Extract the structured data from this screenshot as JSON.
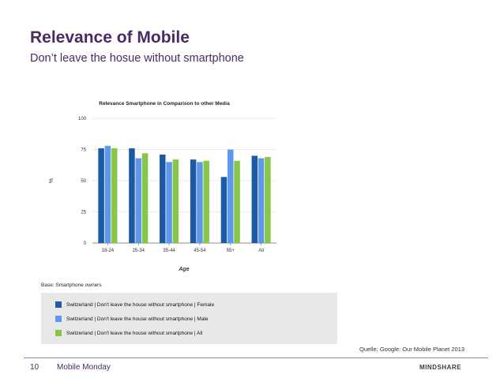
{
  "slide": {
    "title": "Relevance of Mobile",
    "subtitle": "Don’t leave the hosue without smartphone",
    "base_note": "Base: Smartphone owners",
    "source": "Quelle: Google: Our Mobile Planet 2013",
    "page_number": "10",
    "footer_title": "Mobile Monday",
    "brand": "MINDSHARE"
  },
  "chart_data": {
    "type": "bar",
    "title": "Relevance Smartphone in Comparison to other Media",
    "xlabel": "Age",
    "ylabel": "%",
    "ylim": [
      0,
      100
    ],
    "yticks": [
      0,
      25,
      50,
      75,
      100
    ],
    "grid": true,
    "legend_placement": "bottom",
    "categories": [
      "18-24",
      "25-34",
      "35-44",
      "45-54",
      "55+",
      "All"
    ],
    "series": [
      {
        "name": "Switzerland | Don't leave the house without smartphone | Female",
        "color": "#1c5aa6",
        "values": [
          76,
          76,
          71,
          67,
          53,
          70
        ]
      },
      {
        "name": "Switzerland | Don't leave the house without smartphone | Male",
        "color": "#5f97ea",
        "values": [
          78,
          68,
          65,
          65,
          75,
          68
        ]
      },
      {
        "name": "Switzerland | Don't leave the house without smartphone | All",
        "color": "#86c74a",
        "values": [
          76,
          72,
          67,
          66,
          66,
          69
        ]
      }
    ]
  }
}
